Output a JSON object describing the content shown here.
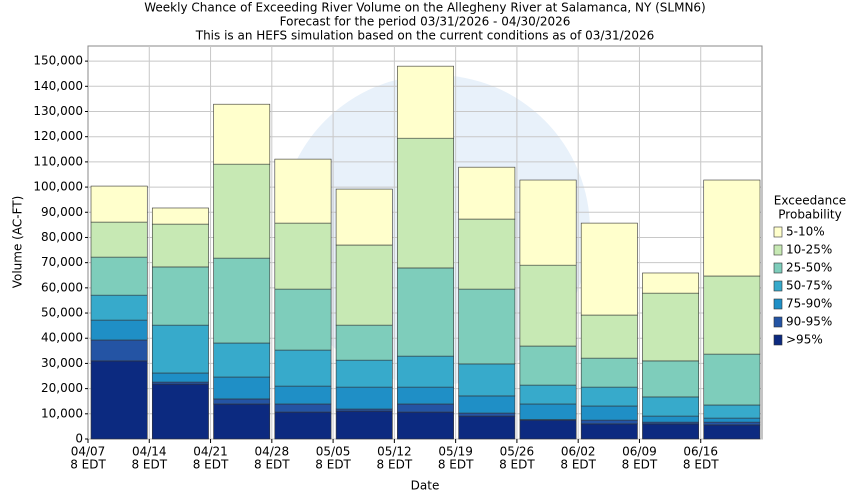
{
  "chart_data": {
    "type": "stacked_bar",
    "title": [
      "Weekly Chance of Exceeding River Volume on the Allegheny River at Salamanca, NY (SLMN6)",
      "Forecast for the period 03/31/2026 - 04/30/2026",
      "This is an HEFS simulation based on the current conditions as of 03/31/2026"
    ],
    "x_label": "Date",
    "y_label": "Volume (AC-FT)",
    "legend_title": [
      "Exceedance",
      "Probability"
    ],
    "categories": [
      "04/07",
      "04/14",
      "04/21",
      "04/28",
      "05/05",
      "05/12",
      "05/19",
      "05/26",
      "06/02",
      "06/09",
      "06/16"
    ],
    "category_suffix": "8 EDT",
    "ylim": [
      0,
      156000
    ],
    "yticks": [
      0,
      {
        "value": 10000,
        "label": "10,000"
      },
      {
        "value": 20000,
        "label": "20,000"
      },
      {
        "value": 30000,
        "label": "30,000"
      },
      {
        "value": 40000,
        "label": "40,000"
      },
      {
        "value": 50000,
        "label": "50,000"
      },
      {
        "value": 60000,
        "label": "60,000"
      },
      {
        "value": 70000,
        "label": "70,000"
      },
      {
        "value": 80000,
        "label": "80,000"
      },
      {
        "value": 90000,
        "label": "90,000"
      },
      {
        "value": 100000,
        "label": "100,000"
      },
      {
        "value": 110000,
        "label": "110,000"
      },
      {
        "value": 120000,
        "label": "120,000"
      },
      {
        "value": 130000,
        "label": "130,000"
      },
      {
        "value": 140000,
        "label": "140,000"
      },
      {
        "value": 150000,
        "label": "150,000"
      }
    ],
    "grid": true,
    "legend_position": "right",
    "series": [
      {
        "name": ">95%",
        "color": "#0c2a80",
        "values": [
          31000,
          21800,
          13900,
          10700,
          11100,
          10700,
          9100,
          7500,
          6000,
          6000,
          5600
        ]
      },
      {
        "name": "90-95%",
        "color": "#2454a4",
        "values": [
          8300,
          800,
          2000,
          3200,
          800,
          3200,
          1200,
          200,
          1500,
          700,
          1100
        ]
      },
      {
        "name": "75-90%",
        "color": "#1f8fc6",
        "values": [
          7900,
          3600,
          8700,
          7100,
          8700,
          6700,
          6800,
          6200,
          5600,
          2400,
          1600
        ]
      },
      {
        "name": "50-75%",
        "color": "#37aacb",
        "values": [
          9900,
          19000,
          13500,
          14300,
          10700,
          12300,
          12700,
          7500,
          7500,
          7600,
          5200
        ]
      },
      {
        "name": "25-50%",
        "color": "#7ecdbb",
        "values": [
          15100,
          23100,
          33700,
          24200,
          13900,
          35000,
          29700,
          15500,
          11500,
          14300,
          20200
        ]
      },
      {
        "name": "10-25%",
        "color": "#c7e9b4",
        "values": [
          13900,
          17000,
          37300,
          26200,
          31800,
          51500,
          27800,
          32100,
          17100,
          26900,
          31000
        ]
      },
      {
        "name": "5-10%",
        "color": "#ffffcc",
        "values": [
          14300,
          6400,
          23800,
          25400,
          22200,
          28600,
          20600,
          33800,
          36500,
          8000,
          38100
        ]
      }
    ]
  }
}
